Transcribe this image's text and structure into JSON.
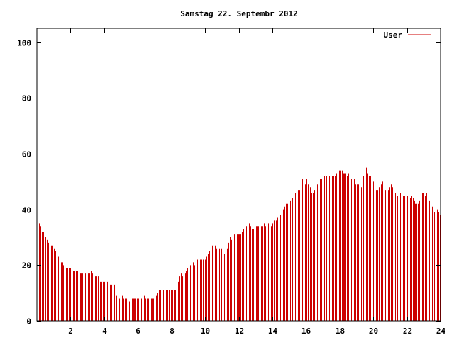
{
  "chart_data": {
    "type": "bar",
    "title": "Samstag 22. Septembr 2012",
    "xlabel": "",
    "ylabel": "",
    "xlim": [
      0,
      24
    ],
    "ylim": [
      0,
      105
    ],
    "x_ticks": [
      2,
      4,
      6,
      8,
      10,
      12,
      14,
      16,
      18,
      20,
      22,
      24
    ],
    "y_ticks": [
      0,
      20,
      40,
      60,
      80,
      100
    ],
    "grid": false,
    "legend_position": "top-right",
    "series": [
      {
        "name": "User",
        "color": "#cc0000",
        "x_step_hours": 0.0833,
        "values": [
          36,
          35,
          34,
          32,
          32,
          32,
          30,
          29,
          28,
          27,
          27,
          27,
          26,
          25,
          24,
          23,
          22,
          21,
          21,
          20,
          19,
          19,
          19,
          19,
          19,
          19,
          18,
          18,
          18,
          18,
          18,
          17,
          17,
          17,
          17,
          17,
          17,
          17,
          17,
          18,
          17,
          16,
          16,
          16,
          16,
          15,
          14,
          14,
          14,
          14,
          14,
          14,
          14,
          13,
          13,
          13,
          13,
          9,
          9,
          9,
          8,
          9,
          9,
          8,
          8,
          8,
          8,
          7,
          7,
          8,
          8,
          8,
          8,
          8,
          8,
          8,
          8,
          9,
          9,
          8,
          8,
          8,
          8,
          8,
          8,
          8,
          8,
          9,
          10,
          11,
          11,
          11,
          11,
          11,
          11,
          11,
          11,
          11,
          11,
          11,
          11,
          11,
          11,
          14,
          16,
          17,
          16,
          16,
          17,
          18,
          19,
          20,
          20,
          22,
          21,
          20,
          21,
          22,
          22,
          22,
          22,
          22,
          22,
          22,
          23,
          24,
          25,
          26,
          27,
          28,
          27,
          26,
          26,
          26,
          24,
          26,
          25,
          24,
          24,
          26,
          28,
          30,
          29,
          30,
          31,
          30,
          31,
          31,
          31,
          31,
          32,
          33,
          33,
          34,
          34,
          35,
          34,
          33,
          33,
          33,
          34,
          34,
          34,
          34,
          34,
          34,
          35,
          34,
          34,
          35,
          34,
          34,
          35,
          36,
          36,
          36,
          37,
          38,
          38,
          39,
          40,
          41,
          42,
          42,
          42,
          43,
          43,
          44,
          45,
          46,
          46,
          47,
          47,
          50,
          51,
          51,
          49,
          51,
          49,
          49,
          48,
          46,
          46,
          47,
          48,
          49,
          50,
          51,
          51,
          51,
          52,
          52,
          52,
          51,
          52,
          53,
          52,
          52,
          52,
          53,
          54,
          54,
          54,
          54,
          53,
          53,
          53,
          52,
          53,
          52,
          51,
          51,
          51,
          49,
          49,
          49,
          49,
          48,
          48,
          52,
          53,
          55,
          53,
          52,
          52,
          51,
          50,
          48,
          47,
          47,
          48,
          48,
          49,
          50,
          49,
          47,
          48,
          47,
          48,
          49,
          48,
          47,
          46,
          46,
          45,
          46,
          46,
          46,
          45,
          45,
          45,
          45,
          45,
          44,
          45,
          44,
          43,
          42,
          42,
          42,
          43,
          44,
          46,
          46,
          45,
          46,
          45,
          43,
          42,
          41,
          40,
          39,
          39,
          40,
          39,
          38
        ]
      }
    ]
  }
}
